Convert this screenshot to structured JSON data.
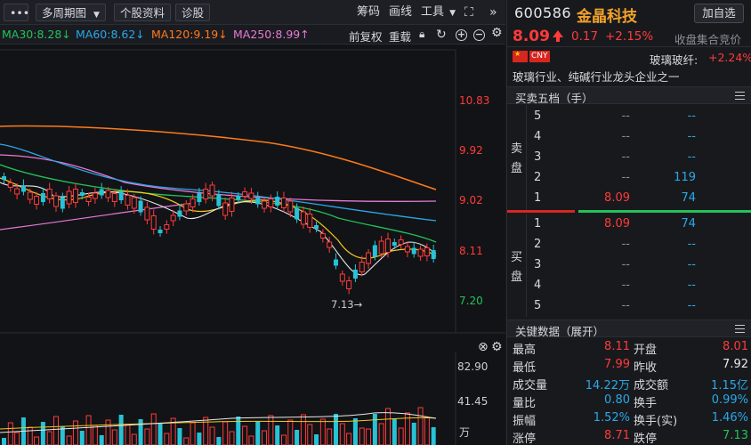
{
  "toolbar": {
    "period_label": "多周期图",
    "stock_info_label": "个股资料",
    "diagnosis_label": "诊股",
    "chips_label": "筹码",
    "drawing_label": "画线",
    "tools_label": "工具"
  },
  "ma_legend": {
    "ma30": "MA30:8.28",
    "ma60": "MA60:8.62",
    "ma120": "MA120:9.19",
    "ma250": "MA250:8.99",
    "colors": {
      "ma30": "#22c35a",
      "ma60": "#2aa8e8",
      "ma120": "#ff7a1a",
      "ma250": "#e879d6"
    },
    "adjust_label": "前复权",
    "reload_label": "重载"
  },
  "chart": {
    "price_ticks": [
      "10.83",
      "9.92",
      "9.02",
      "8.11",
      "7.20"
    ],
    "low_marker": "7.13",
    "volume_ticks": [
      "82.90",
      "41.45",
      "万"
    ]
  },
  "chart_data": {
    "type": "candlestick",
    "y_axis_ticks": [
      10.83,
      9.92,
      9.02,
      8.11,
      7.2
    ],
    "annotated_low": 7.13,
    "moving_averages": [
      "MA30",
      "MA60",
      "MA120",
      "MA250"
    ],
    "volume_axis_ticks": [
      82.9,
      41.45
    ],
    "volume_unit": "万"
  },
  "quote": {
    "code": "600586",
    "name": "金晶科技",
    "add_label": "加自选",
    "price": "8.09",
    "change": "0.17",
    "change_pct": "+2.15%",
    "status": "收盘集合竞价",
    "currency": "CNY",
    "sector": "玻璃玻纤:",
    "sector_pct": "+2.24%",
    "description": "玻璃行业、纯碱行业龙头企业之一"
  },
  "orderbook": {
    "title": "买卖五档（手）",
    "sell_label": [
      "卖",
      "盘"
    ],
    "buy_label": [
      "买",
      "盘"
    ],
    "sell": [
      {
        "level": "5",
        "price": "--",
        "vol": "--"
      },
      {
        "level": "4",
        "price": "--",
        "vol": "--"
      },
      {
        "level": "3",
        "price": "--",
        "vol": "--"
      },
      {
        "level": "2",
        "price": "--",
        "vol": "119"
      },
      {
        "level": "1",
        "price": "8.09",
        "vol": "74"
      }
    ],
    "buy": [
      {
        "level": "1",
        "price": "8.09",
        "vol": "74"
      },
      {
        "level": "2",
        "price": "--",
        "vol": "--"
      },
      {
        "level": "3",
        "price": "--",
        "vol": "--"
      },
      {
        "level": "4",
        "price": "--",
        "vol": "--"
      },
      {
        "level": "5",
        "price": "--",
        "vol": "--"
      }
    ]
  },
  "keydata": {
    "title": "关键数据（展开）",
    "rows": [
      {
        "l1": "最高",
        "v1": "8.11",
        "c1": "red",
        "l2": "开盘",
        "v2": "8.01",
        "c2": "red"
      },
      {
        "l1": "最低",
        "v1": "7.99",
        "c1": "red",
        "l2": "昨收",
        "v2": "7.92",
        "c2": "white"
      },
      {
        "l1": "成交量",
        "v1": "14.22万",
        "c1": "blue",
        "l2": "成交额",
        "v2": "1.15亿",
        "c2": "blue"
      },
      {
        "l1": "量比",
        "v1": "0.80",
        "c1": "blue",
        "l2": "换手",
        "v2": "0.99%",
        "c2": "blue"
      },
      {
        "l1": "振幅",
        "v1": "1.52%",
        "c1": "blue",
        "l2": "换手(实)",
        "v2": "1.46%",
        "c2": "blue"
      },
      {
        "l1": "涨停",
        "v1": "8.71",
        "c1": "red",
        "l2": "跌停",
        "v2": "7.13",
        "c2": "green"
      }
    ]
  }
}
